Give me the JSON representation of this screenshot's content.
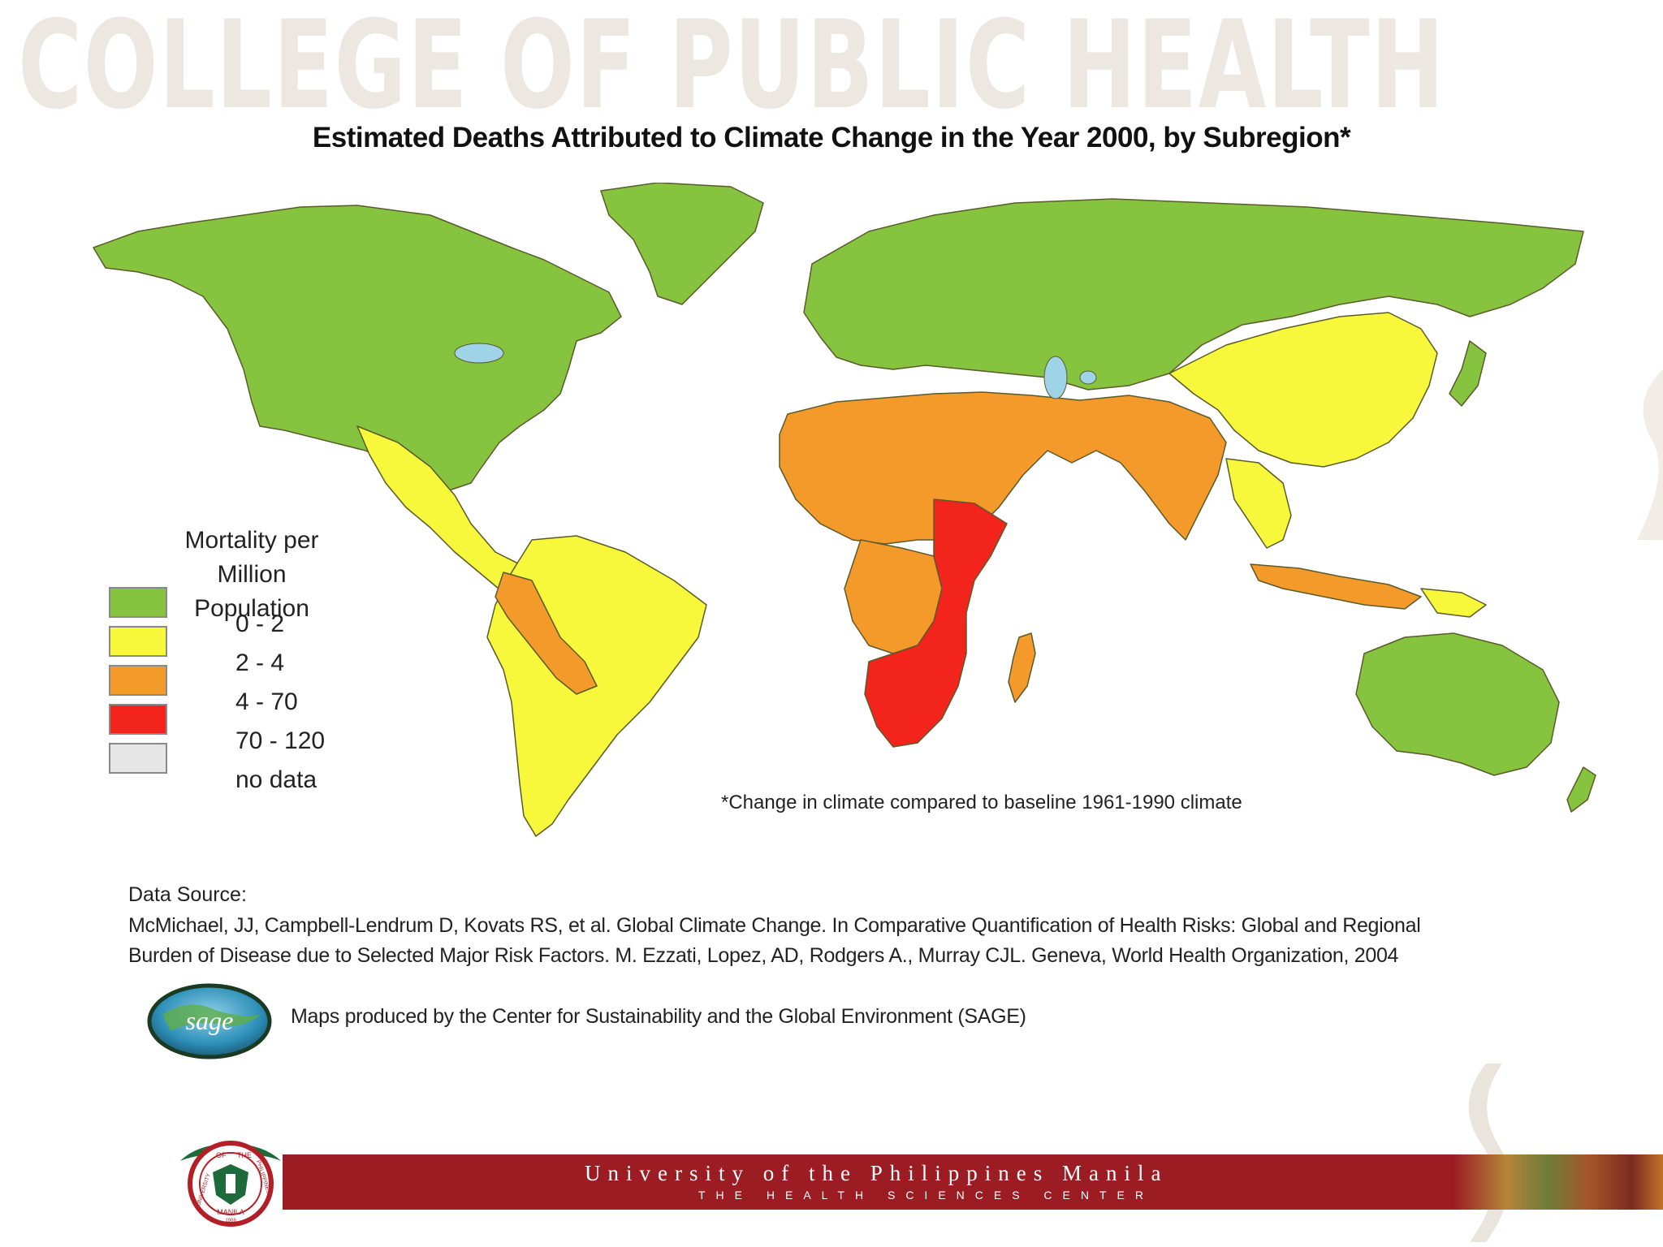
{
  "header": {
    "watermark": "COLLEGE OF PUBLIC HEALTH"
  },
  "map": {
    "title": "Estimated Deaths Attributed to Climate Change in the Year 2000, by Subregion*",
    "footnote": "*Change in climate compared to baseline 1961-1990 climate",
    "colors": {
      "ocean": "#ffffff",
      "border": "#5a5a2a",
      "lake": "#9fd3e8"
    }
  },
  "legend": {
    "title_line1": "Mortality per Million",
    "title_line2": "Population",
    "items": [
      {
        "label": "0 - 2",
        "color": "#86c440"
      },
      {
        "label": "2 - 4",
        "color": "#f7f73c"
      },
      {
        "label": "4 - 70",
        "color": "#f39a2b"
      },
      {
        "label": "70 - 120",
        "color": "#f2241c"
      },
      {
        "label": "no data",
        "color": "#e6e6e6"
      }
    ]
  },
  "source": {
    "heading": "Data Source:",
    "line1": "McMichael, JJ, Campbell-Lendrum D, Kovats RS, et al. Global Climate Change. In Comparative Quantification of Health Risks: Global and Regional",
    "line2": "Burden of Disease due to Selected Major Risk Factors. M. Ezzati, Lopez, AD, Rodgers A., Murray CJL. Geneva, World Health Organization, 2004"
  },
  "credit": {
    "logo_text": "sage",
    "text": "Maps produced by the Center for Sustainability and the Global Environment (SAGE)"
  },
  "footer": {
    "university": "University of the Philippines Manila",
    "center": "THE HEALTH SCIENCES CENTER",
    "seal_top_left": "OF",
    "seal_top_right": "THE",
    "seal_left": "UNIVERSITY",
    "seal_right": "PHILIPPINES",
    "seal_bottom": "MANILA",
    "seal_year": "1908",
    "band_color": "#9c1c24"
  }
}
